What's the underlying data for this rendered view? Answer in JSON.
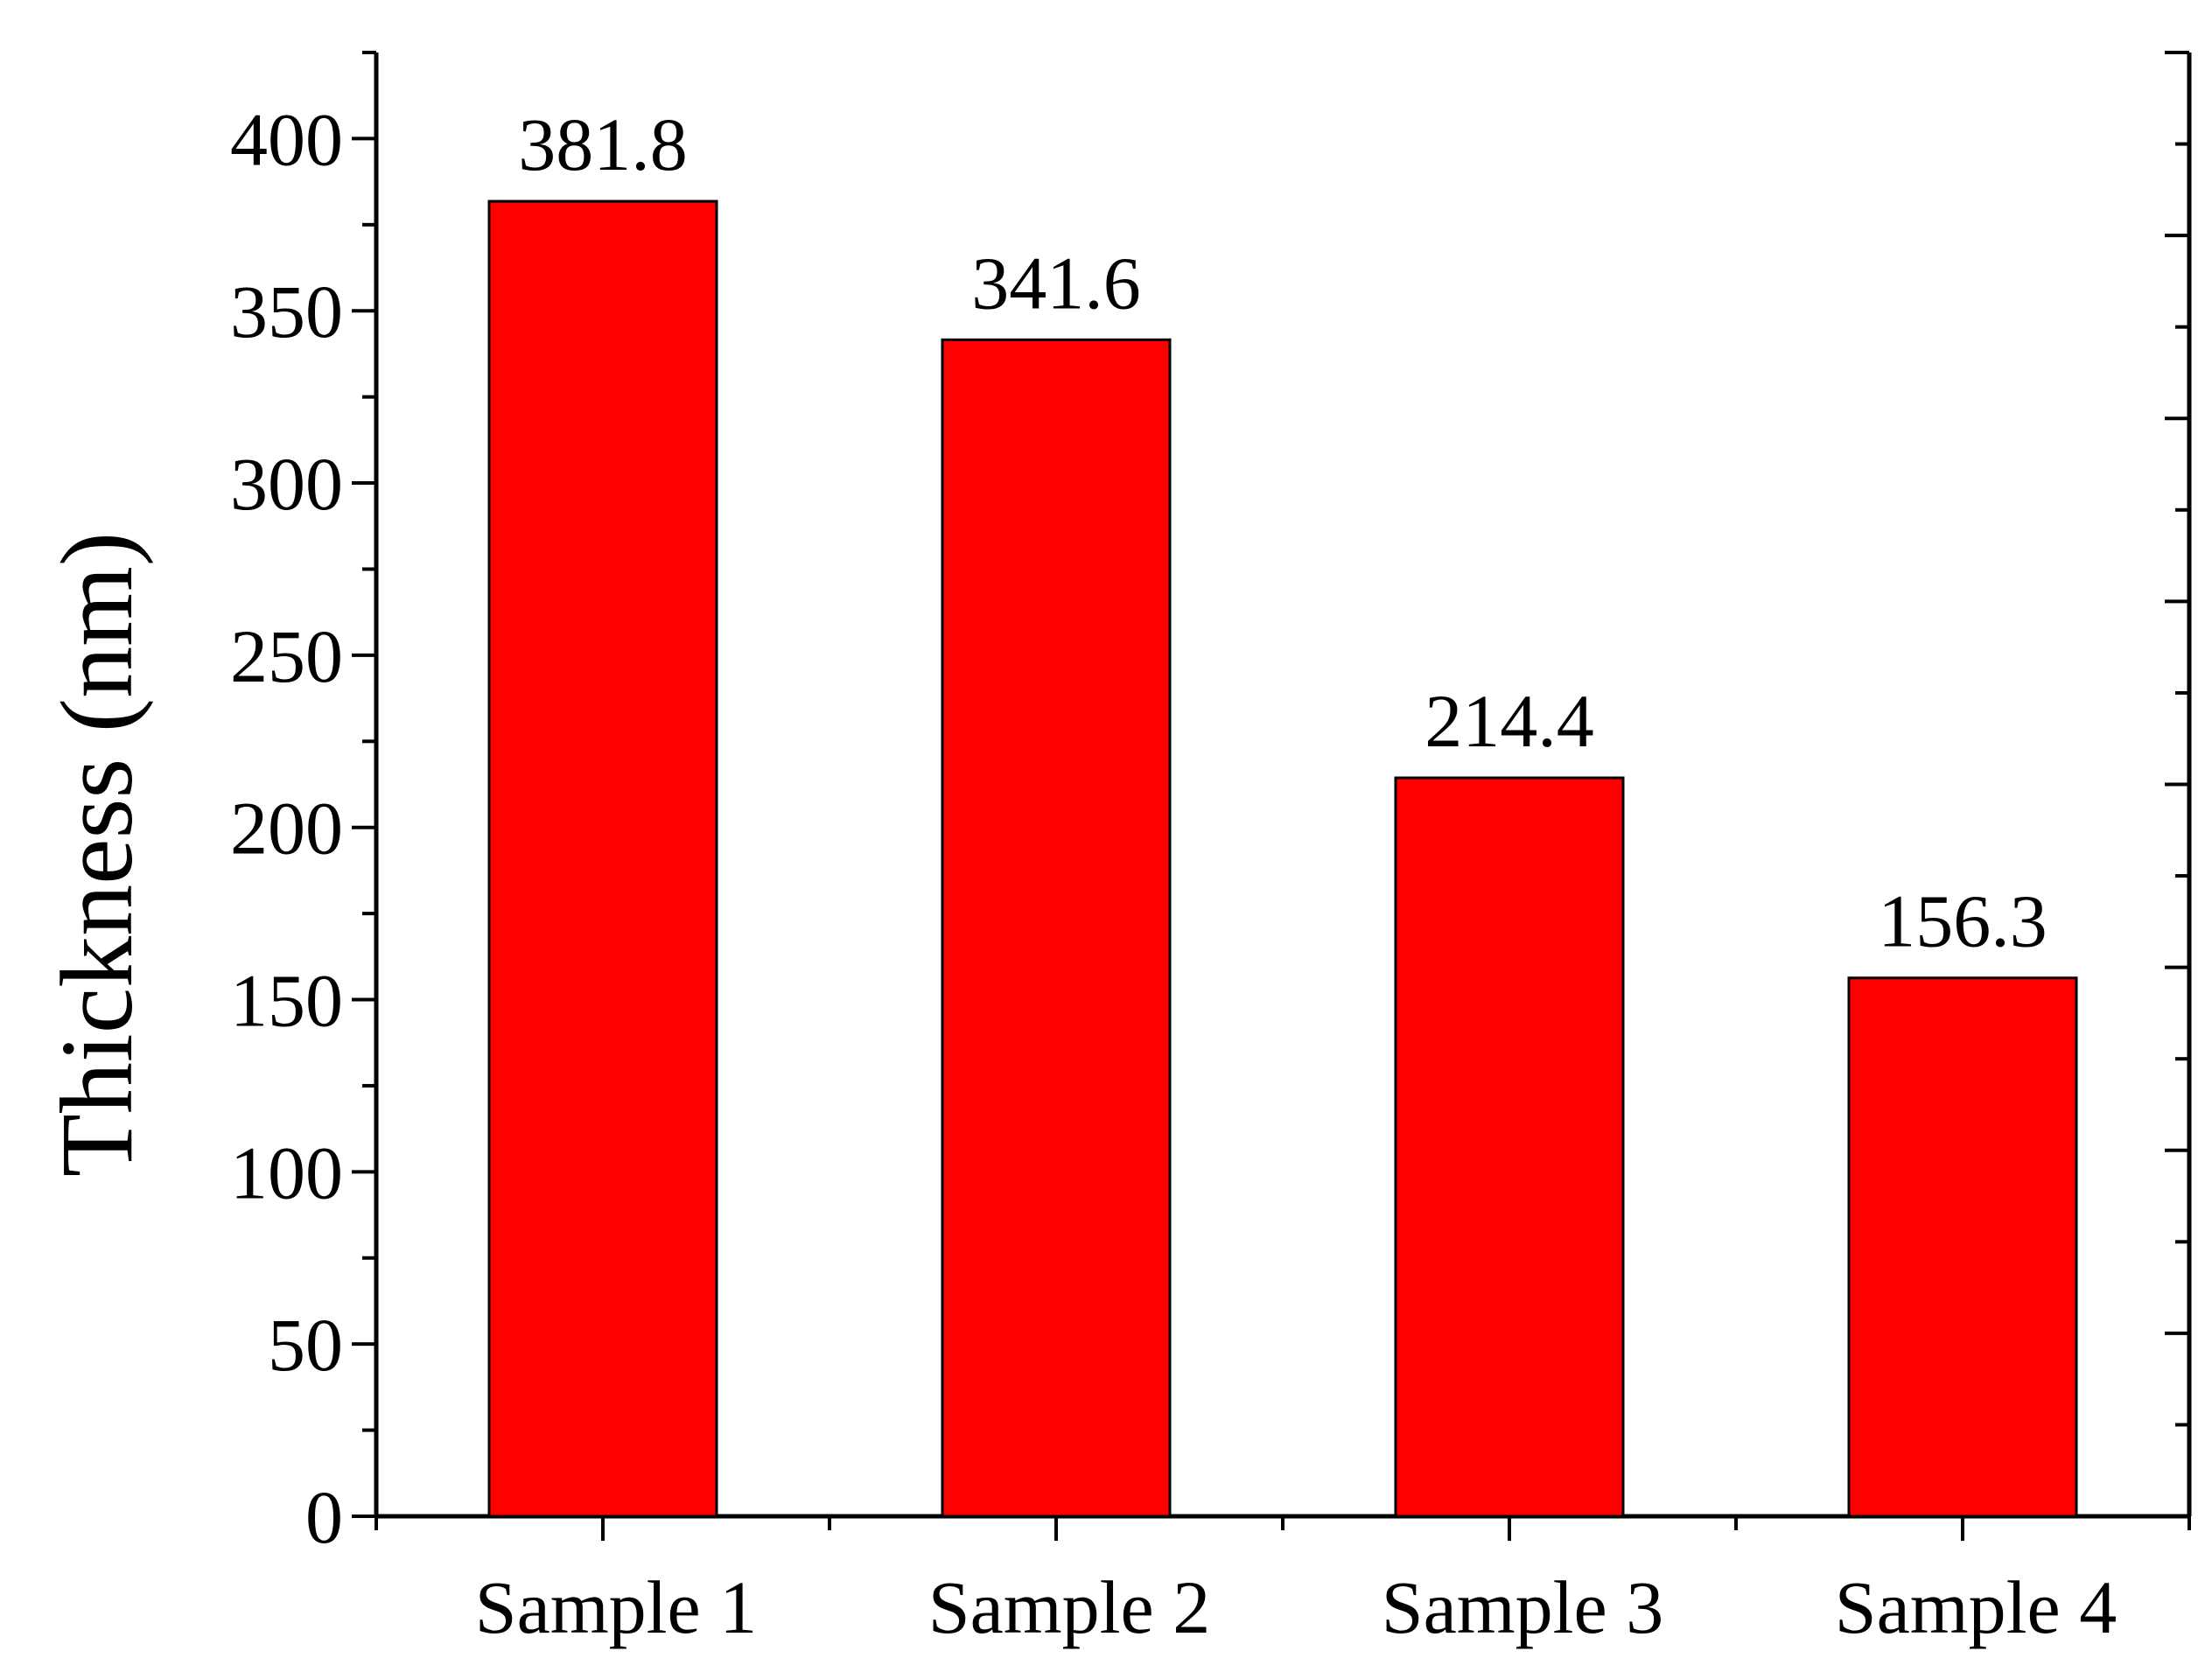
{
  "chart_data": {
    "type": "bar",
    "title": "",
    "xlabel": "",
    "ylabel": "Thickness (nm)",
    "categories": [
      "Sample 1",
      "Sample 2",
      "Sample 3",
      "Sample 4"
    ],
    "values": [
      381.8,
      341.6,
      214.4,
      156.3
    ],
    "data_labels": [
      "381.8",
      "341.6",
      "214.4",
      "156.3"
    ],
    "ylim": [
      0,
      425
    ],
    "yticks": [
      0,
      50,
      100,
      150,
      200,
      250,
      300,
      350,
      400
    ],
    "ytick_labels": [
      "0",
      "50",
      "100",
      "150",
      "200",
      "250",
      "300",
      "350",
      "400"
    ],
    "grid": false,
    "legend": "none",
    "bar_color": "#ff0000",
    "bar_edge_color": "#000000",
    "axis_color": "#000000"
  }
}
